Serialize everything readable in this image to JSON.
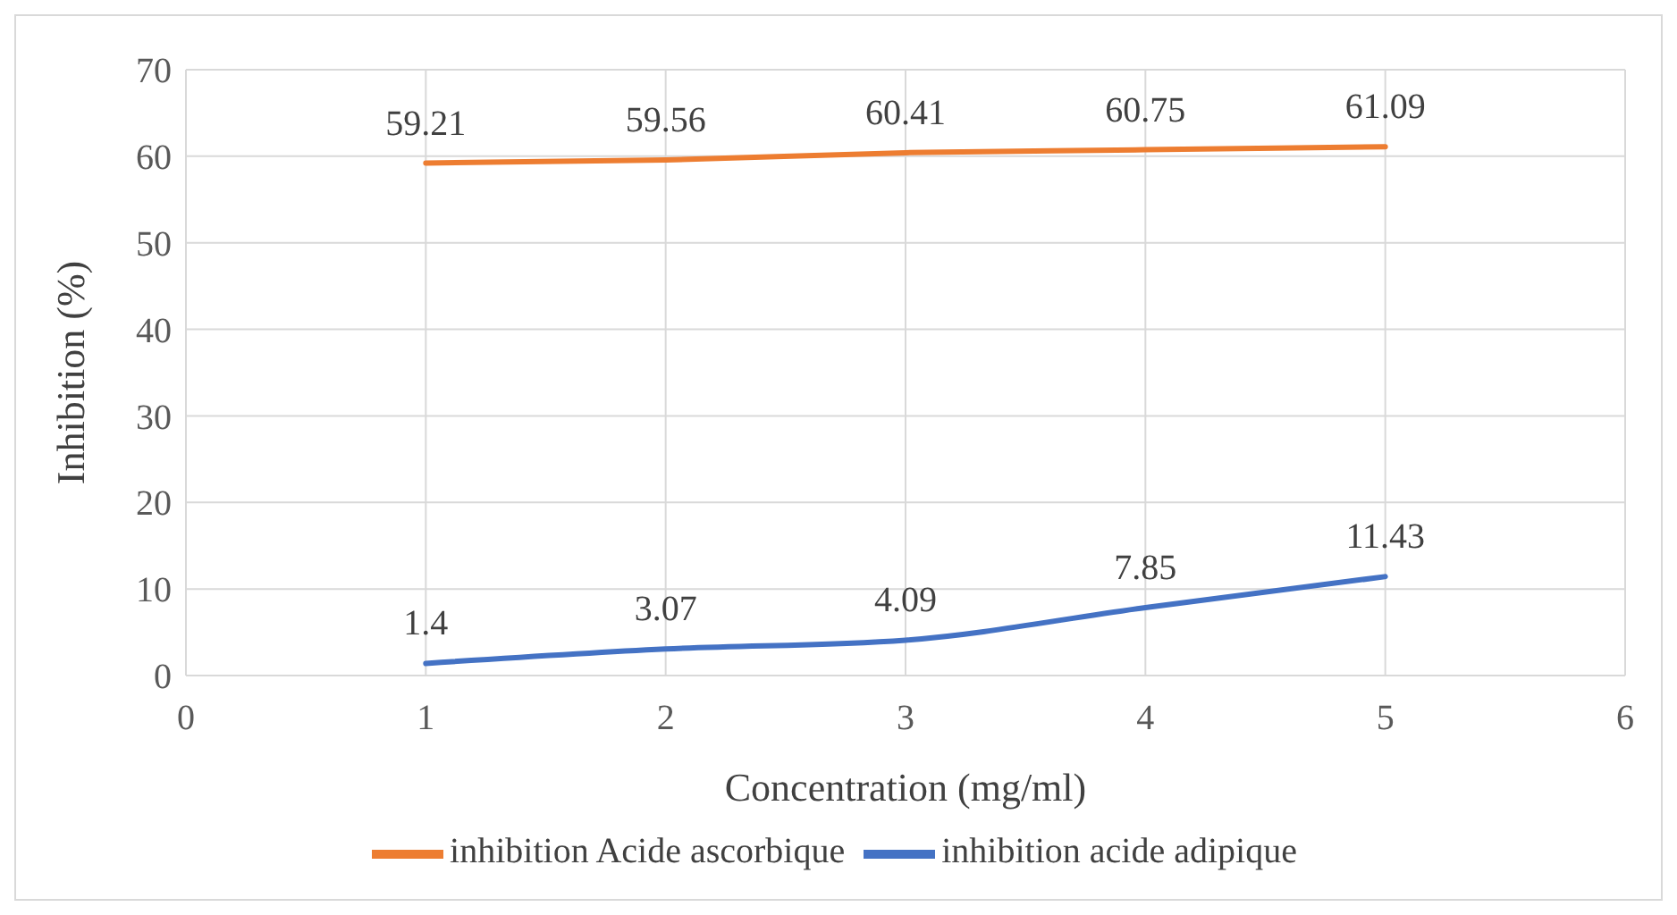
{
  "chart_data": {
    "type": "line",
    "xlabel": "Concentration (mg/ml)",
    "ylabel": "Inhibition (%)",
    "x": [
      1,
      2,
      3,
      4,
      5
    ],
    "series": [
      {
        "name": "inhibition acide adipique",
        "color": "#4472c4",
        "values": [
          1.4,
          3.07,
          4.09,
          7.85,
          11.43
        ]
      },
      {
        "name": "inhibition Acide ascorbique",
        "color": "#ed7d31",
        "values": [
          59.21,
          59.56,
          60.41,
          60.75,
          61.09
        ]
      }
    ],
    "xlim": [
      0,
      6
    ],
    "xticks": [
      0,
      1,
      2,
      3,
      4,
      5,
      6
    ],
    "ylim": [
      0,
      70
    ],
    "yticks": [
      0,
      10,
      20,
      30,
      40,
      50,
      60,
      70
    ],
    "grid": true,
    "legend": "bottom",
    "data_labels": true
  }
}
